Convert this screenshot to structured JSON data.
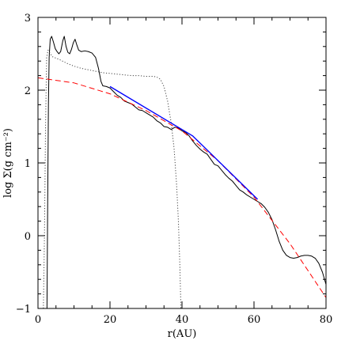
{
  "chart_data": {
    "type": "line",
    "xlabel": "r(AU)",
    "ylabel": "log Σ(g cm⁻²)",
    "xlim": [
      0,
      80
    ],
    "ylim": [
      -1,
      3
    ],
    "x_ticks": [
      0,
      20,
      40,
      60,
      80
    ],
    "y_ticks": [
      -1,
      0,
      1,
      2,
      3
    ],
    "x_ticks_minor_step": 5,
    "y_ticks_minor_step": 0.2,
    "grid": false,
    "legend": "none",
    "series": [
      {
        "style": "solid",
        "color": "#000000",
        "points": [
          [
            2.5,
            -1.0
          ],
          [
            2.7,
            0.5
          ],
          [
            2.9,
            1.8
          ],
          [
            3.1,
            2.45
          ],
          [
            3.4,
            2.7
          ],
          [
            3.8,
            2.74
          ],
          [
            4.3,
            2.66
          ],
          [
            4.8,
            2.57
          ],
          [
            5.3,
            2.53
          ],
          [
            5.8,
            2.5
          ],
          [
            6.3,
            2.53
          ],
          [
            6.9,
            2.68
          ],
          [
            7.3,
            2.74
          ],
          [
            7.8,
            2.6
          ],
          [
            8.3,
            2.52
          ],
          [
            8.8,
            2.5
          ],
          [
            9.3,
            2.56
          ],
          [
            9.8,
            2.65
          ],
          [
            10.3,
            2.7
          ],
          [
            10.8,
            2.62
          ],
          [
            11.3,
            2.55
          ],
          [
            12,
            2.53
          ],
          [
            13,
            2.54
          ],
          [
            14,
            2.53
          ],
          [
            15,
            2.51
          ],
          [
            16,
            2.45
          ],
          [
            16.8,
            2.3
          ],
          [
            17.5,
            2.12
          ],
          [
            18,
            2.06
          ],
          [
            19,
            2.05
          ],
          [
            20,
            2.03
          ],
          [
            21,
            1.98
          ],
          [
            22,
            1.93
          ],
          [
            23,
            1.9
          ],
          [
            24,
            1.85
          ],
          [
            25,
            1.83
          ],
          [
            26,
            1.81
          ],
          [
            27,
            1.77
          ],
          [
            28,
            1.73
          ],
          [
            29,
            1.72
          ],
          [
            30,
            1.69
          ],
          [
            31,
            1.66
          ],
          [
            32,
            1.63
          ],
          [
            33,
            1.58
          ],
          [
            34,
            1.55
          ],
          [
            35,
            1.5
          ],
          [
            36,
            1.49
          ],
          [
            37,
            1.46
          ],
          [
            38,
            1.49
          ],
          [
            39,
            1.48
          ],
          [
            40,
            1.44
          ],
          [
            41,
            1.42
          ],
          [
            42,
            1.37
          ],
          [
            43,
            1.3
          ],
          [
            44,
            1.24
          ],
          [
            45,
            1.19
          ],
          [
            46,
            1.15
          ],
          [
            47,
            1.12
          ],
          [
            48,
            1.05
          ],
          [
            49,
            0.98
          ],
          [
            50,
            0.96
          ],
          [
            51,
            0.9
          ],
          [
            52,
            0.84
          ],
          [
            53,
            0.79
          ],
          [
            54,
            0.75
          ],
          [
            55,
            0.69
          ],
          [
            56,
            0.63
          ],
          [
            57,
            0.6
          ],
          [
            58,
            0.56
          ],
          [
            59,
            0.53
          ],
          [
            60,
            0.5
          ],
          [
            61,
            0.47
          ],
          [
            62,
            0.44
          ],
          [
            63,
            0.39
          ],
          [
            64,
            0.32
          ],
          [
            65,
            0.22
          ],
          [
            66,
            0.08
          ],
          [
            67,
            -0.08
          ],
          [
            68,
            -0.2
          ],
          [
            69,
            -0.27
          ],
          [
            70,
            -0.3
          ],
          [
            71,
            -0.31
          ],
          [
            72,
            -0.3
          ],
          [
            73,
            -0.28
          ],
          [
            74,
            -0.27
          ],
          [
            75,
            -0.27
          ],
          [
            76,
            -0.28
          ],
          [
            77,
            -0.31
          ],
          [
            78,
            -0.38
          ],
          [
            79,
            -0.5
          ],
          [
            80,
            -0.67
          ]
        ]
      },
      {
        "style": "dotted",
        "color": "#444444",
        "points": [
          [
            1.5,
            -1.0
          ],
          [
            1.8,
            0.0
          ],
          [
            2.1,
            1.5
          ],
          [
            2.4,
            2.45
          ],
          [
            2.8,
            2.55
          ],
          [
            4,
            2.46
          ],
          [
            6,
            2.42
          ],
          [
            8,
            2.37
          ],
          [
            10,
            2.33
          ],
          [
            12,
            2.3
          ],
          [
            14,
            2.28
          ],
          [
            16,
            2.26
          ],
          [
            18,
            2.24
          ],
          [
            20,
            2.23
          ],
          [
            22,
            2.22
          ],
          [
            24,
            2.21
          ],
          [
            26,
            2.2
          ],
          [
            28,
            2.2
          ],
          [
            30,
            2.19
          ],
          [
            32,
            2.19
          ],
          [
            33,
            2.18
          ],
          [
            34,
            2.15
          ],
          [
            35,
            2.05
          ],
          [
            36,
            1.85
          ],
          [
            37,
            1.55
          ],
          [
            37.8,
            1.2
          ],
          [
            38.5,
            0.7
          ],
          [
            39,
            0.2
          ],
          [
            39.4,
            -0.4
          ],
          [
            39.7,
            -1.0
          ]
        ]
      },
      {
        "style": "dashed",
        "color": "#ff0000",
        "points": [
          [
            0,
            2.17
          ],
          [
            10,
            2.1
          ],
          [
            20,
            1.95
          ],
          [
            30,
            1.72
          ],
          [
            40,
            1.44
          ],
          [
            50,
            1.03
          ],
          [
            60,
            0.53
          ],
          [
            70,
            -0.11
          ],
          [
            80,
            -0.85
          ]
        ]
      },
      {
        "style": "solid",
        "color": "#0000ff",
        "points": [
          [
            20,
            2.05
          ],
          [
            43,
            1.37
          ],
          [
            61,
            0.5
          ]
        ]
      }
    ]
  }
}
